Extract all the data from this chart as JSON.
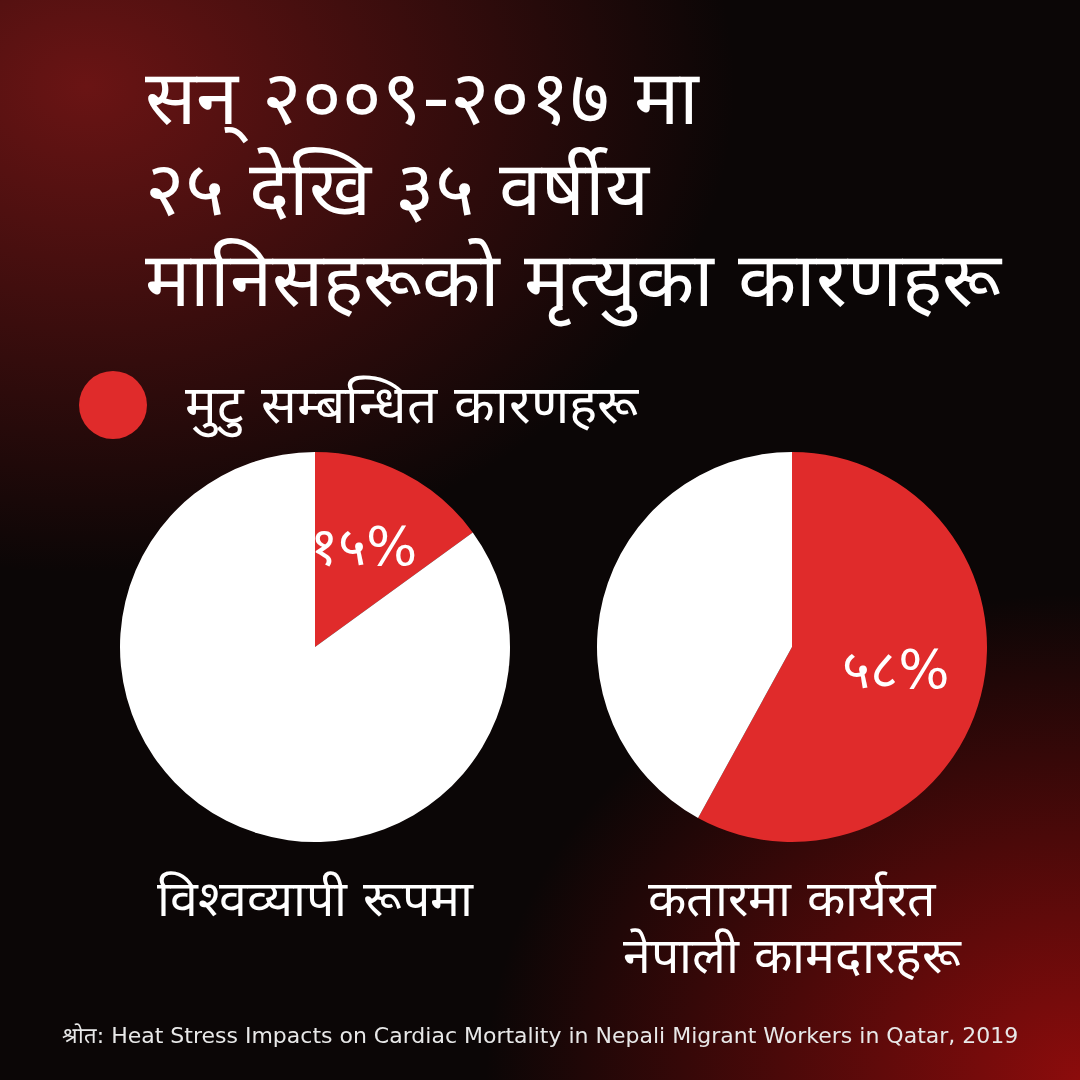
{
  "chart_data": [
    {
      "type": "pie",
      "title": "सन् २००९-२०१७ मा\n२५ देखि ३५ वर्षीय\nमानिसहरूको मृत्युका कारणहरू",
      "xlabel": "विश्वव्यापी रूपमा",
      "categories": [
        "मुटु सम्बन्धित कारणहरू",
        null
      ],
      "values": [
        15,
        85
      ],
      "colors": [
        "#e02b2b",
        "#ffffff"
      ],
      "value_labels": [
        "१५%",
        null
      ],
      "legend": "top"
    },
    {
      "type": "pie",
      "xlabel": "कतारमा कार्यरत\nनेपाली कामदारहरू",
      "categories": [
        null,
        null
      ],
      "values": [
        58,
        42
      ],
      "colors": [
        "#e02b2b",
        "#ffffff"
      ],
      "value_labels": [
        "५८%",
        null
      ],
      "annotations": [
        "श्रोत: Heat Stress Impacts on Cardiac Mortality in Nepali Migrant Workers in Qatar, 2019"
      ]
    }
  ]
}
